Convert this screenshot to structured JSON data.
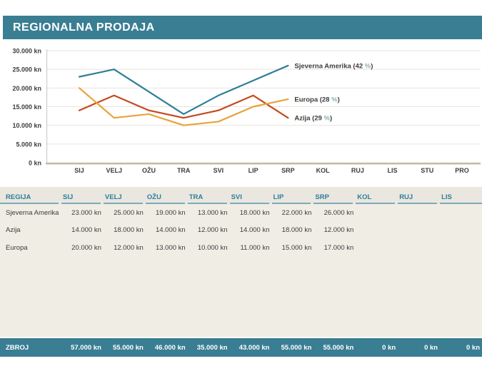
{
  "title": "REGIONALNA PRODAJA",
  "chart_data": {
    "type": "line",
    "x": [
      "SIJ",
      "VELJ",
      "OŽU",
      "TRA",
      "SVI",
      "LIP",
      "SRP",
      "KOL",
      "RUJ",
      "LIS",
      "STU",
      "PRO"
    ],
    "series": [
      {
        "name": "Sjeverna Amerika",
        "pct": "42",
        "color": "#2E7E96",
        "values": [
          23000,
          25000,
          19000,
          13000,
          18000,
          22000,
          26000
        ]
      },
      {
        "name": "Azija",
        "pct": "29",
        "color": "#C24A1E",
        "values": [
          14000,
          18000,
          14000,
          12000,
          14000,
          18000,
          12000
        ]
      },
      {
        "name": "Europa",
        "pct": "28",
        "color": "#E8A33B",
        "values": [
          20000,
          12000,
          13000,
          10000,
          11000,
          15000,
          17000
        ]
      }
    ],
    "ylim": [
      0,
      30000
    ],
    "ytick_step": 5000,
    "ytick_labels": [
      "30.000 kn",
      "25.000 kn",
      "20.000 kn",
      "15.000 kn",
      "10.000 kn",
      "5.000 kn",
      "0 kn"
    ],
    "grid": true,
    "legend": "end-of-line-labels",
    "label_format": "name (pct %)"
  },
  "table": {
    "columns": [
      "REGIJA",
      "SIJ",
      "VELJ",
      "OŽU",
      "TRA",
      "SVI",
      "LIP",
      "SRP",
      "KOL",
      "RUJ",
      "LIS"
    ],
    "rows": [
      {
        "region": "Sjeverna Amerika",
        "values": [
          "23.000 kn",
          "25.000 kn",
          "19.000 kn",
          "13.000 kn",
          "18.000 kn",
          "22.000 kn",
          "26.000 kn",
          "",
          "",
          ""
        ]
      },
      {
        "region": "Azija",
        "values": [
          "14.000 kn",
          "18.000 kn",
          "14.000 kn",
          "12.000 kn",
          "14.000 kn",
          "18.000 kn",
          "12.000 kn",
          "",
          "",
          ""
        ]
      },
      {
        "region": "Europa",
        "values": [
          "20.000 kn",
          "12.000 kn",
          "13.000 kn",
          "10.000 kn",
          "11.000 kn",
          "15.000 kn",
          "17.000 kn",
          "",
          "",
          ""
        ]
      }
    ],
    "total": {
      "label": "ZBROJ",
      "values": [
        "57.000 kn",
        "55.000 kn",
        "46.000 kn",
        "35.000 kn",
        "43.000 kn",
        "55.000 kn",
        "55.000 kn",
        "0 kn",
        "0 kn",
        "0 kn"
      ]
    }
  },
  "colors": {
    "accent_teal": "#3A7E93",
    "header_text": "#2E7D97",
    "header_underline": "#7FA9B8",
    "table_bg": "#F0EDE5",
    "header_bg": "#E9E7E0",
    "text": "#3C3C3C",
    "gridline": "#E7E4DD",
    "axis_x": "#C4BBA6",
    "axis_y": "#D6D3CA",
    "pct_symbol": "#8FAFB5",
    "series_north_america": "#2E7E96",
    "series_asia": "#C24A1E",
    "series_europe": "#E8A33B"
  }
}
